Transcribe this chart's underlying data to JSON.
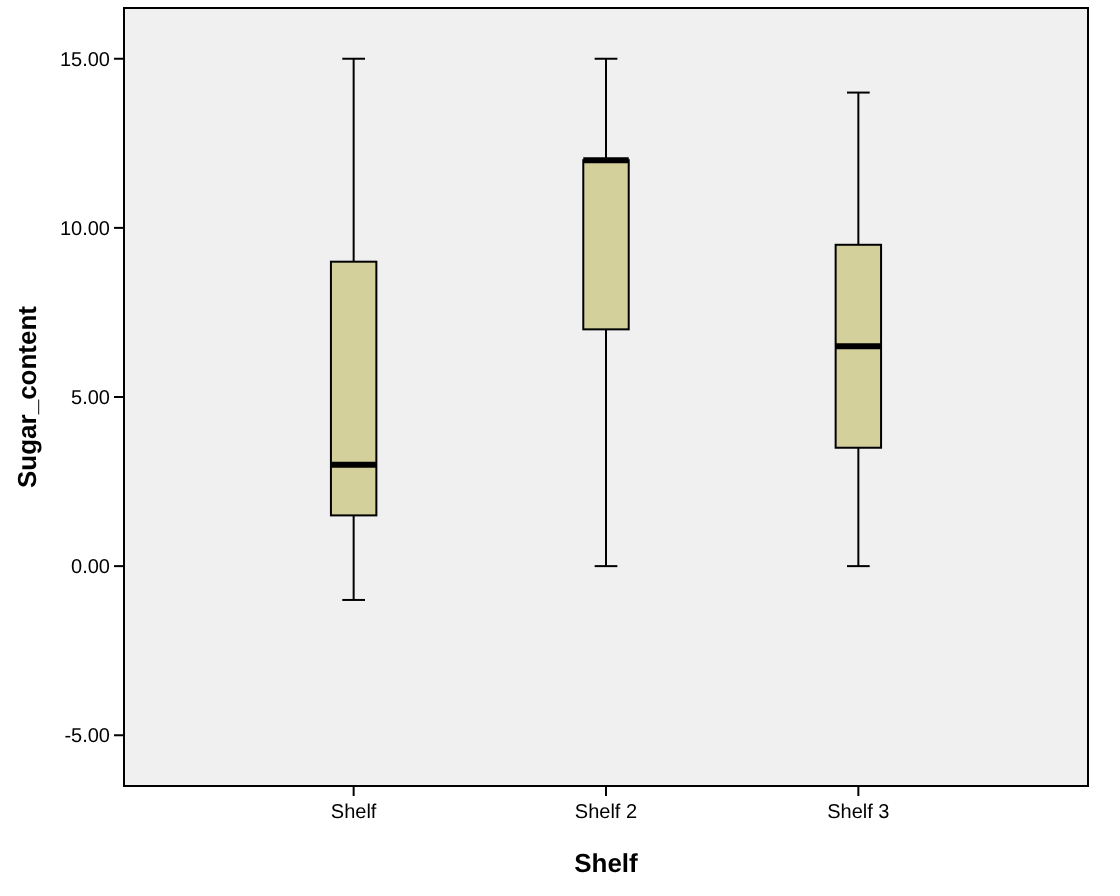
{
  "chart_data": {
    "type": "box",
    "xlabel": "Shelf",
    "ylabel": "Sugar_content",
    "categories": [
      "Shelf",
      "Shelf 2",
      "Shelf 3"
    ],
    "color": "#d4d09c",
    "boxes": [
      {
        "low": -1,
        "q1": 1.5,
        "median": 3,
        "q3": 9,
        "high": 15
      },
      {
        "low": 0,
        "q1": 7,
        "median": 12,
        "q3": 12,
        "high": 15
      },
      {
        "low": 0,
        "q1": 3.5,
        "median": 6.5,
        "q3": 9.5,
        "high": 14
      }
    ],
    "ylim": [
      -6.5,
      16.5
    ],
    "yticks": [
      {
        "value": -5,
        "label": "-5.00"
      },
      {
        "value": 0,
        "label": "0.00"
      },
      {
        "value": 5,
        "label": "5.00"
      },
      {
        "value": 10,
        "label": "10.00"
      },
      {
        "value": 15,
        "label": "15.00"
      }
    ]
  }
}
